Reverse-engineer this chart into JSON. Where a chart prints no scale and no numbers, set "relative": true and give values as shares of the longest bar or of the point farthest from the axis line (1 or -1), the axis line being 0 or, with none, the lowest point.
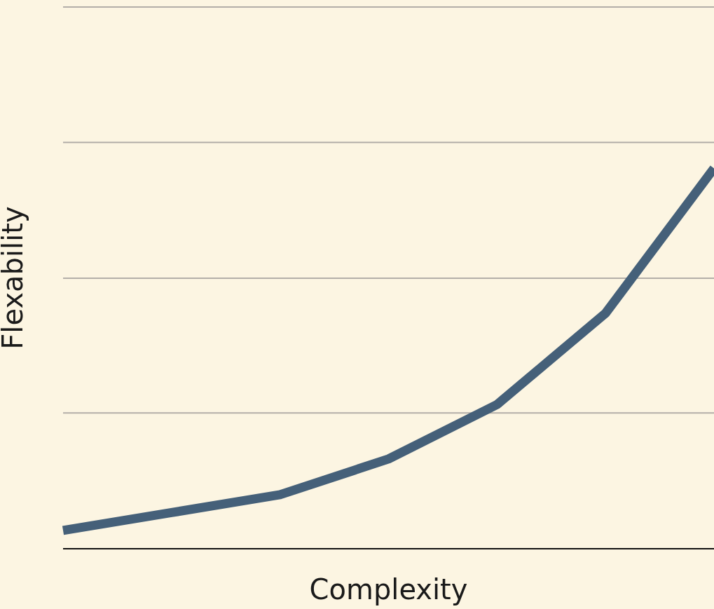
{
  "chart_data": {
    "type": "line",
    "xlabel": "Complexity",
    "ylabel": "Flexability",
    "relative": true,
    "categories": [
      null,
      null,
      null,
      null,
      null,
      null,
      null
    ],
    "series": [
      {
        "color": "#456079",
        "values": [
          0.048,
          0.095,
          0.142,
          0.236,
          0.379,
          0.619,
          1
        ]
      }
    ],
    "ref_lines": [
      {
        "axis": "y",
        "value": 0.357,
        "color": "#b3aea8"
      },
      {
        "axis": "y",
        "value": 0.711,
        "color": "#b3aea8"
      },
      {
        "axis": "y",
        "value": 1.068,
        "color": "#b3aea8"
      },
      {
        "axis": "y",
        "value": 1.424,
        "color": "#b3aea8"
      }
    ],
    "marker": "none",
    "line_style": "solid"
  }
}
